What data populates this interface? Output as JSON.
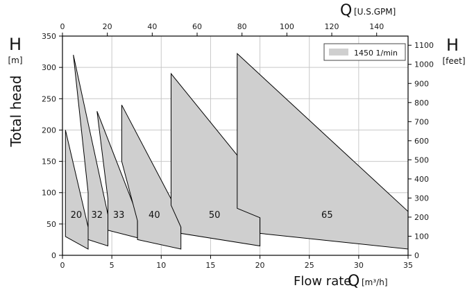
{
  "chart_data": {
    "type": "area",
    "left_axis": {
      "symbol": "H",
      "unit": "[m]",
      "label": "Total head",
      "range": [
        0,
        350
      ],
      "ticks": [
        0,
        50,
        100,
        150,
        200,
        250,
        300,
        350
      ]
    },
    "right_axis": {
      "symbol": "H",
      "unit": "[feet]",
      "range_feet": [
        0,
        1148
      ],
      "ticks": [
        0,
        100,
        200,
        300,
        400,
        500,
        600,
        700,
        800,
        900,
        1000,
        1100
      ]
    },
    "bottom_axis": {
      "label": "Flow rate",
      "symbol": "Q",
      "unit": "[m³/h]",
      "range": [
        0,
        35
      ],
      "ticks": [
        0,
        5,
        10,
        15,
        20,
        25,
        30,
        35
      ]
    },
    "top_axis": {
      "symbol": "Q",
      "unit": "[U.S.GPM]",
      "range_gpm": [
        0,
        154
      ],
      "ticks": [
        0,
        20,
        40,
        60,
        80,
        100,
        120,
        140
      ]
    },
    "legend": {
      "label": "1450 1/min",
      "position": "top-right"
    },
    "grid": true,
    "series": [
      {
        "name": "20",
        "polygon": [
          [
            0.3,
            200
          ],
          [
            2.6,
            45
          ],
          [
            2.6,
            10
          ],
          [
            0.3,
            30
          ]
        ]
      },
      {
        "name": "32",
        "polygon": [
          [
            1.1,
            320
          ],
          [
            4.6,
            65
          ],
          [
            4.6,
            15
          ],
          [
            2.6,
            25
          ],
          [
            2.6,
            100
          ]
        ]
      },
      {
        "name": "33",
        "polygon": [
          [
            3.5,
            230
          ],
          [
            7.6,
            64
          ],
          [
            7.6,
            28
          ],
          [
            4.6,
            40
          ],
          [
            4.6,
            90
          ]
        ]
      },
      {
        "name": "40",
        "polygon": [
          [
            6.0,
            240
          ],
          [
            12.0,
            60
          ],
          [
            12.0,
            10
          ],
          [
            7.6,
            25
          ],
          [
            7.6,
            55
          ],
          [
            6.0,
            150
          ]
        ]
      },
      {
        "name": "50",
        "polygon": [
          [
            11.0,
            290
          ],
          [
            20.0,
            115
          ],
          [
            20.0,
            15
          ],
          [
            12.0,
            35
          ],
          [
            12.0,
            45
          ],
          [
            11.0,
            80
          ]
        ]
      },
      {
        "name": "65",
        "polygon": [
          [
            17.7,
            322
          ],
          [
            35.0,
            70
          ],
          [
            35.0,
            10
          ],
          [
            20.0,
            35
          ],
          [
            20.0,
            60
          ],
          [
            17.7,
            75
          ]
        ]
      }
    ],
    "region_labels": [
      {
        "name": "20",
        "x": 1.4,
        "y": 60
      },
      {
        "name": "32",
        "x": 3.5,
        "y": 60
      },
      {
        "name": "33",
        "x": 5.7,
        "y": 60
      },
      {
        "name": "40",
        "x": 9.3,
        "y": 60
      },
      {
        "name": "50",
        "x": 15.4,
        "y": 60
      },
      {
        "name": "65",
        "x": 26.8,
        "y": 60
      }
    ]
  }
}
